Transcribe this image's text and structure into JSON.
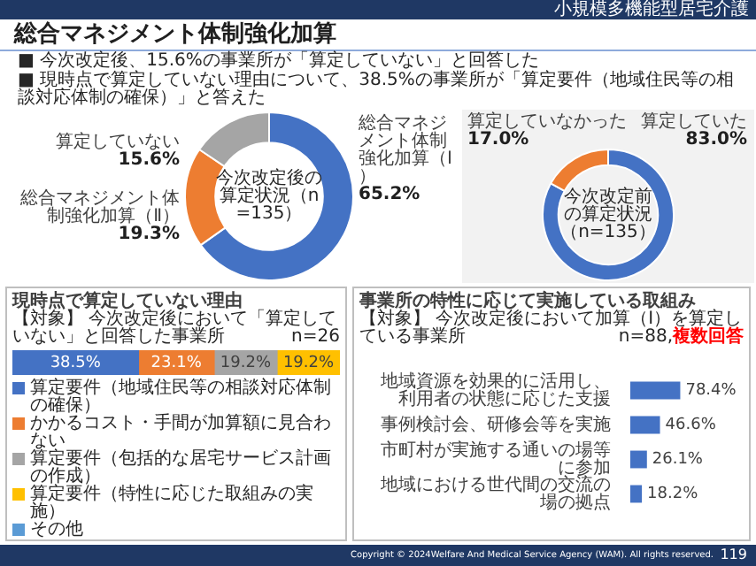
{
  "chart_data": [
    {
      "type": "donut",
      "title": "総合マネジメント体制強化加算",
      "categories": [
        "総合マネジメント体制強化加算（Ⅰ）",
        "総合マネジメント体制強化加算（Ⅱ）",
        "算定していない"
      ],
      "values": [
        65.2,
        19.3,
        15.6
      ],
      "colors": [
        "#4472c4",
        "#ed7d31",
        "#a5a5a5"
      ],
      "value_labels": [
        "65.2%",
        "19.3%",
        "15.6%"
      ],
      "annotations": [
        "今次改定後の算定状況（n=135）",
        "小規模多機能型居宅介護",
        "■ 今次改定後、15.6%の事業所が「算定していない」と回答した",
        "■ 現時点で算定していない理由について、38.5%の事業所が「算定要件（地域住民等の相談対応体制の確保）」と答えた",
        "Copyright © 2024Welfare And Medical Service Agency (WAM). All rights reserved.",
        "119"
      ]
    },
    {
      "type": "donut",
      "categories": [
        "算定していた",
        "算定していなかった"
      ],
      "values": [
        83.0,
        17.0
      ],
      "colors": [
        "#4472c4",
        "#ed7d31"
      ],
      "value_labels": [
        "83.0%",
        "17.0%"
      ],
      "annotations": [
        "今次改定前の算定状況（n=135）"
      ]
    },
    {
      "type": "bar",
      "orientation": "horizontal",
      "stacked": true,
      "title": "現時点で算定していない理由",
      "subtitle": "【対象】 今次改定後において「算定していない」と回答した事業所",
      "annotations": [
        "n=26"
      ],
      "categories": [
        null
      ],
      "xlim": [
        0,
        100
      ],
      "tick_labels": false,
      "legend": "bottom",
      "series": [
        {
          "name": "算定要件（地域住民等の相談対応体制の確保）",
          "color": "#4472c4",
          "values": [
            38.5
          ],
          "value_labels": [
            "38.5%"
          ]
        },
        {
          "name": "かかるコスト・手間が加算額に見合わない",
          "color": "#ed7d31",
          "values": [
            23.1
          ],
          "value_labels": [
            "23.1%"
          ]
        },
        {
          "name": "算定要件（包括的な居宅サービス計画の作成）",
          "color": "#a5a5a5",
          "values": [
            19.2
          ],
          "value_labels": [
            "19.2%"
          ]
        },
        {
          "name": "算定要件（特性に応じた取組みの実施）",
          "color": "#ffc000",
          "values": [
            19.2
          ],
          "value_labels": [
            "19.2%"
          ]
        },
        {
          "name": "その他",
          "color": "#5b9bd5",
          "values": [
            null
          ]
        }
      ]
    },
    {
      "type": "bar",
      "orientation": "horizontal",
      "title": "事業所の特性に応じて実施している取組み",
      "subtitle": "【対象】 今次改定後において加算（Ⅰ）を算定している事業所",
      "annotations": [
        "n=88,",
        "複数回答"
      ],
      "categories": [
        "地域資源を効果的に活用し、利用者の状態に応じた支援",
        "事例検討会、研修会等を実施",
        "市町村が実施する通いの場等に参加",
        "地域における世代間の交流の場の拠点"
      ],
      "values": [
        78.4,
        46.6,
        26.1,
        18.2
      ],
      "value_labels": [
        "78.4%",
        "46.6%",
        "26.1%",
        "18.2%"
      ],
      "color": "#4472c4",
      "tick_labels": "y"
    }
  ]
}
